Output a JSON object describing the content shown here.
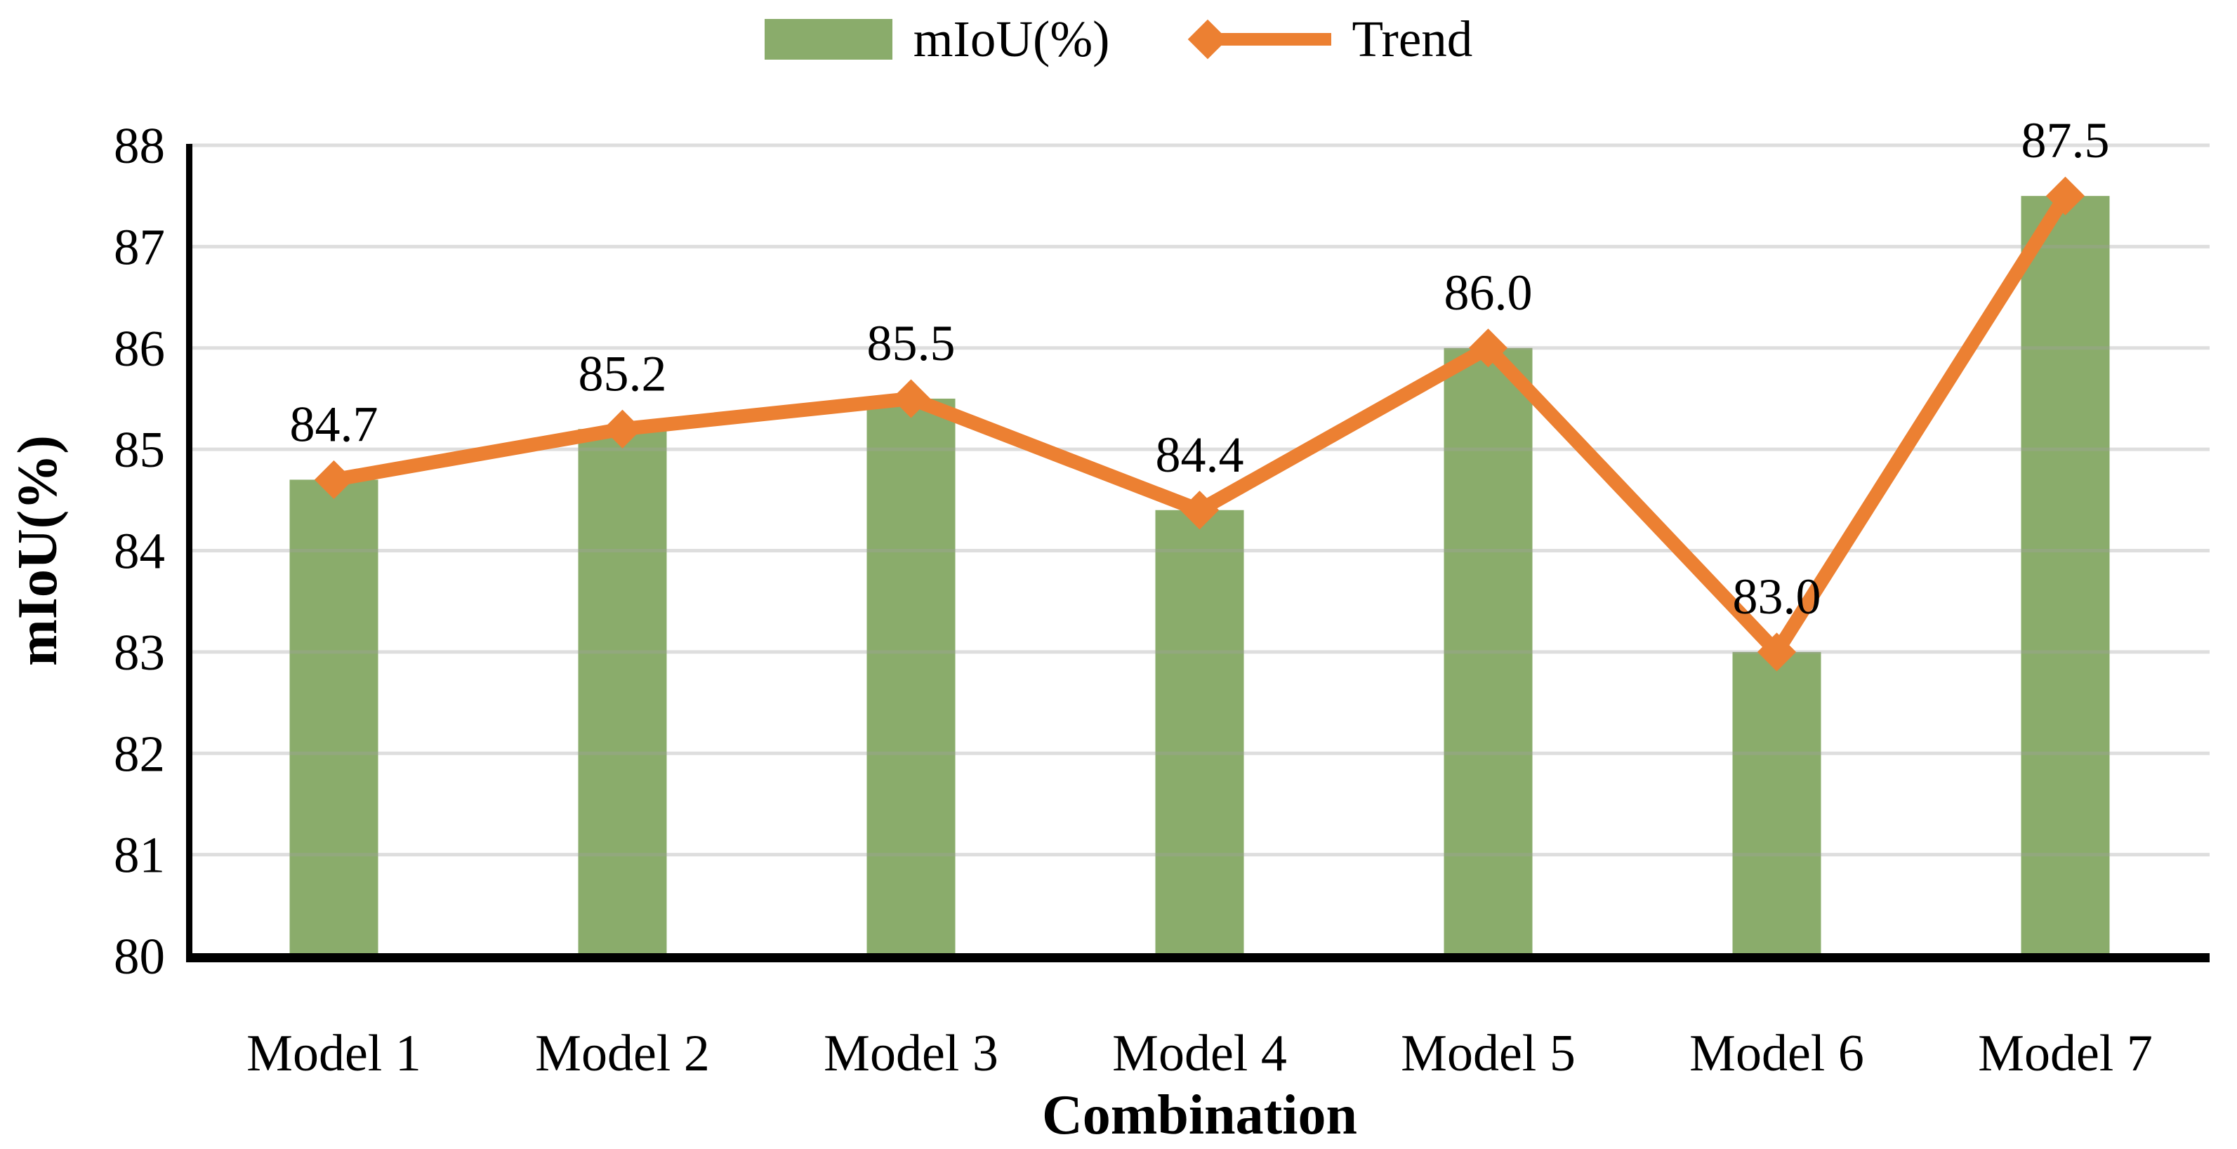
{
  "legend": {
    "items": [
      {
        "label": "mIoU(%)",
        "type": "bar",
        "color": "#8AAC6B"
      },
      {
        "label": "Trend",
        "type": "line",
        "color": "#EC8032"
      }
    ]
  },
  "chart_data": {
    "type": "bar",
    "categories": [
      "Model 1",
      "Model 2",
      "Model 3",
      "Model 4",
      "Model 5",
      "Model 6",
      "Model 7"
    ],
    "series": [
      {
        "name": "mIoU(%)",
        "type": "bar",
        "values": [
          84.7,
          85.2,
          85.5,
          84.4,
          86.0,
          83.0,
          87.5
        ],
        "color": "#8AAC6B"
      },
      {
        "name": "Trend",
        "type": "line",
        "values": [
          84.7,
          85.2,
          85.5,
          84.4,
          86.0,
          83.0,
          87.5
        ],
        "color": "#EC8032",
        "marker": "diamond"
      }
    ],
    "data_labels": [
      "84.7",
      "85.2",
      "85.5",
      "84.4",
      "86.0",
      "83.0",
      "87.5"
    ],
    "title": "",
    "xlabel": "Combination",
    "ylabel": "mIoU(%)",
    "ylim": [
      80,
      88
    ],
    "ytick_step": 1,
    "yticks": [
      "80",
      "81",
      "82",
      "83",
      "84",
      "85",
      "86",
      "87",
      "88"
    ],
    "grid": true,
    "legend_position": "top"
  },
  "colors": {
    "bar": "#8AAC6B",
    "line": "#EC8032",
    "grid": "#E2E2E2",
    "grid_over_bar": "rgba(160,160,160,0.35)",
    "axis": "#000000",
    "text": "#000000"
  }
}
